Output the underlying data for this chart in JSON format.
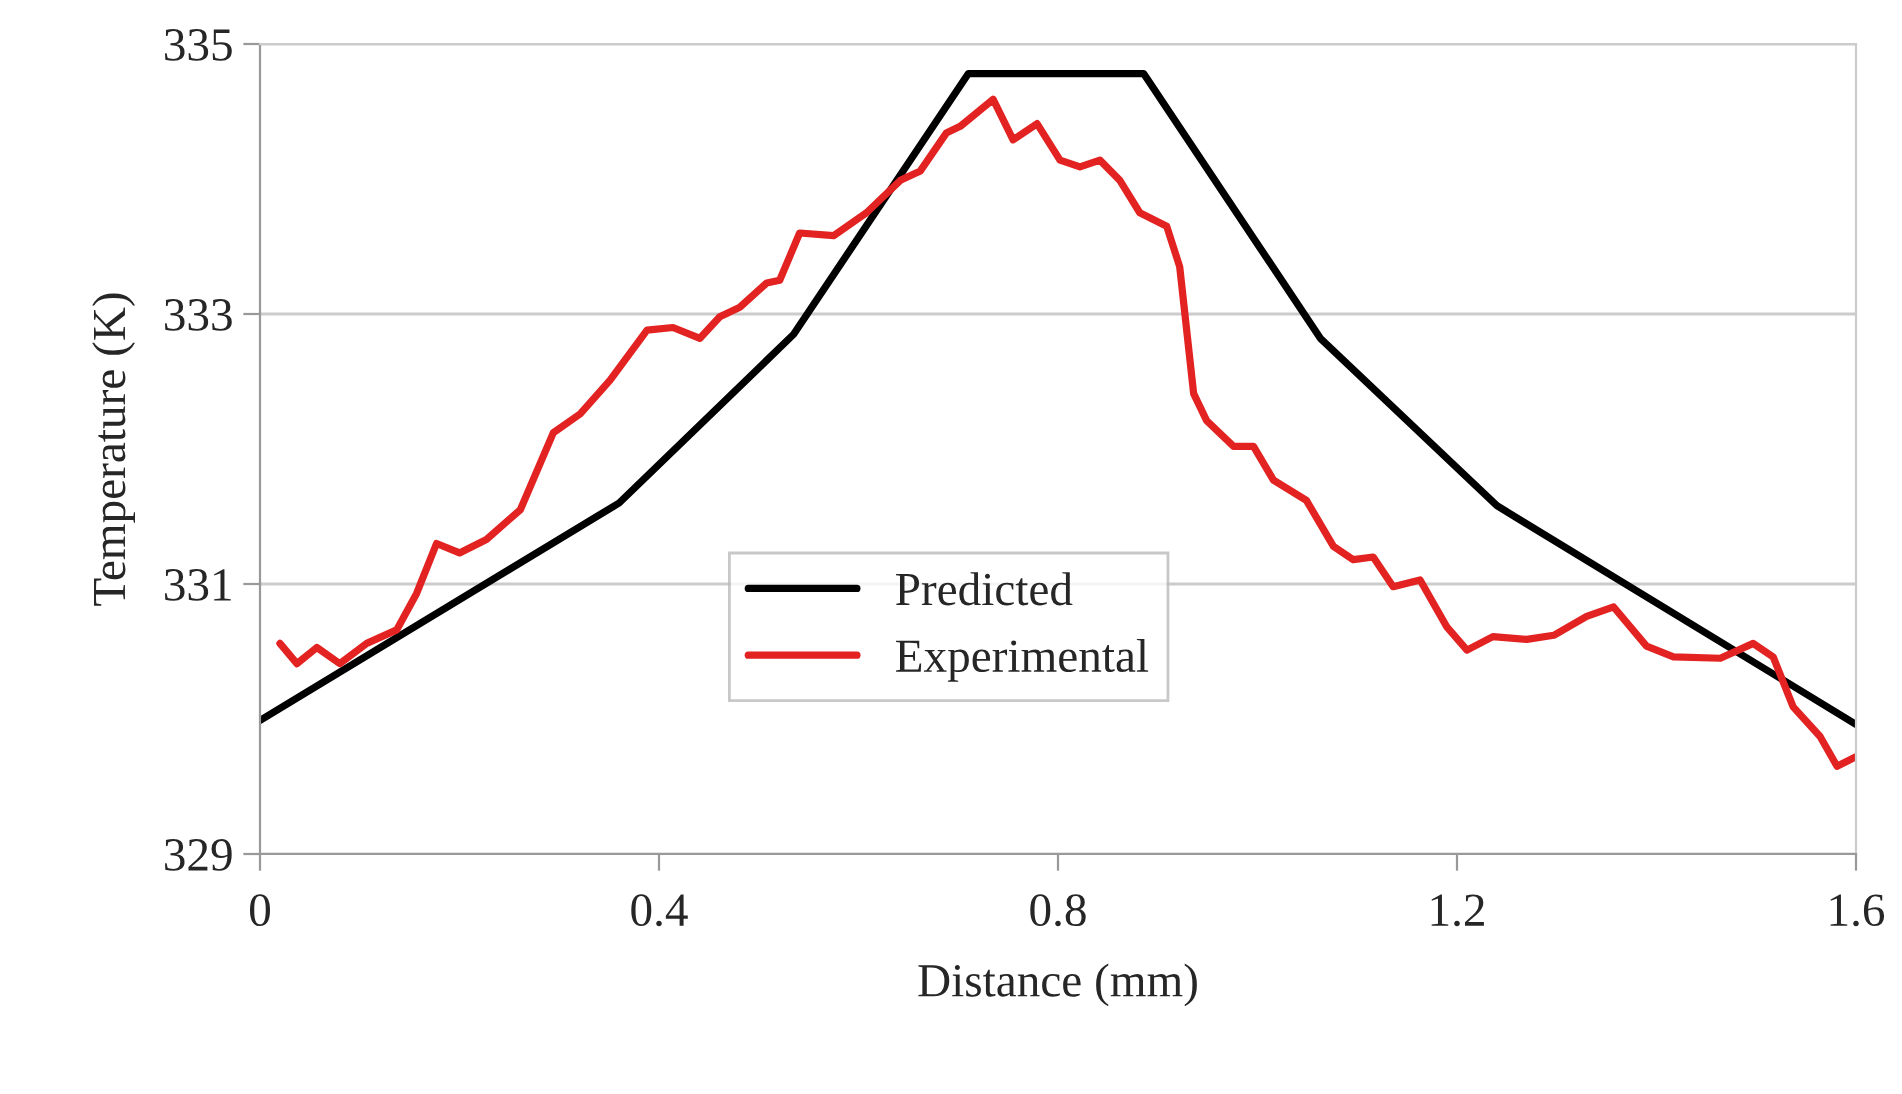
{
  "chart_data": {
    "type": "line",
    "xlabel": "Distance (mm)",
    "ylabel": "Temperature (K)",
    "xlim": [
      0,
      1.6
    ],
    "xticks": [
      0,
      0.4,
      0.8,
      1.2,
      1.6
    ],
    "ylim": [
      329,
      335
    ],
    "yticks": [
      329,
      331,
      333,
      335
    ],
    "grid": "y",
    "legend": "center",
    "marker": "none",
    "line_style": "solid",
    "series": [
      {
        "name": "Predicted",
        "color": "#000000",
        "x": [
          0,
          0.36,
          0.535,
          0.71,
          0.886,
          1.063,
          1.24,
          1.6
        ],
        "values": [
          329.99,
          331.6,
          332.85,
          334.78,
          334.78,
          332.82,
          331.58,
          329.96
        ]
      },
      {
        "name": "Experimental",
        "color": "#e32222",
        "x": [
          0.02,
          0.037,
          0.057,
          0.08,
          0.107,
          0.137,
          0.157,
          0.177,
          0.2,
          0.227,
          0.261,
          0.294,
          0.321,
          0.351,
          0.388,
          0.414,
          0.441,
          0.461,
          0.481,
          0.508,
          0.521,
          0.541,
          0.575,
          0.608,
          0.642,
          0.662,
          0.688,
          0.702,
          0.735,
          0.755,
          0.779,
          0.802,
          0.822,
          0.842,
          0.862,
          0.882,
          0.909,
          0.922,
          0.936,
          0.949,
          0.976,
          0.996,
          1.016,
          1.049,
          1.076,
          1.096,
          1.116,
          1.136,
          1.163,
          1.19,
          1.21,
          1.236,
          1.27,
          1.297,
          1.33,
          1.357,
          1.39,
          1.417,
          1.464,
          1.497,
          1.517,
          1.537,
          1.564,
          1.581,
          1.6
        ],
        "values": [
          330.56,
          330.41,
          330.53,
          330.41,
          330.56,
          330.66,
          330.93,
          331.3,
          331.23,
          331.33,
          331.55,
          332.12,
          332.26,
          332.51,
          332.88,
          332.9,
          332.82,
          332.98,
          333.05,
          333.23,
          333.25,
          333.6,
          333.58,
          333.75,
          333.99,
          334.06,
          334.34,
          334.39,
          334.59,
          334.29,
          334.41,
          334.14,
          334.09,
          334.14,
          333.99,
          333.75,
          333.65,
          333.35,
          332.41,
          332.21,
          332.02,
          332.02,
          331.77,
          331.62,
          331.28,
          331.18,
          331.2,
          330.98,
          331.03,
          330.68,
          330.51,
          330.61,
          330.59,
          330.62,
          330.76,
          330.83,
          330.54,
          330.46,
          330.45,
          330.56,
          330.46,
          330.09,
          329.87,
          329.65,
          329.72
        ]
      }
    ]
  }
}
